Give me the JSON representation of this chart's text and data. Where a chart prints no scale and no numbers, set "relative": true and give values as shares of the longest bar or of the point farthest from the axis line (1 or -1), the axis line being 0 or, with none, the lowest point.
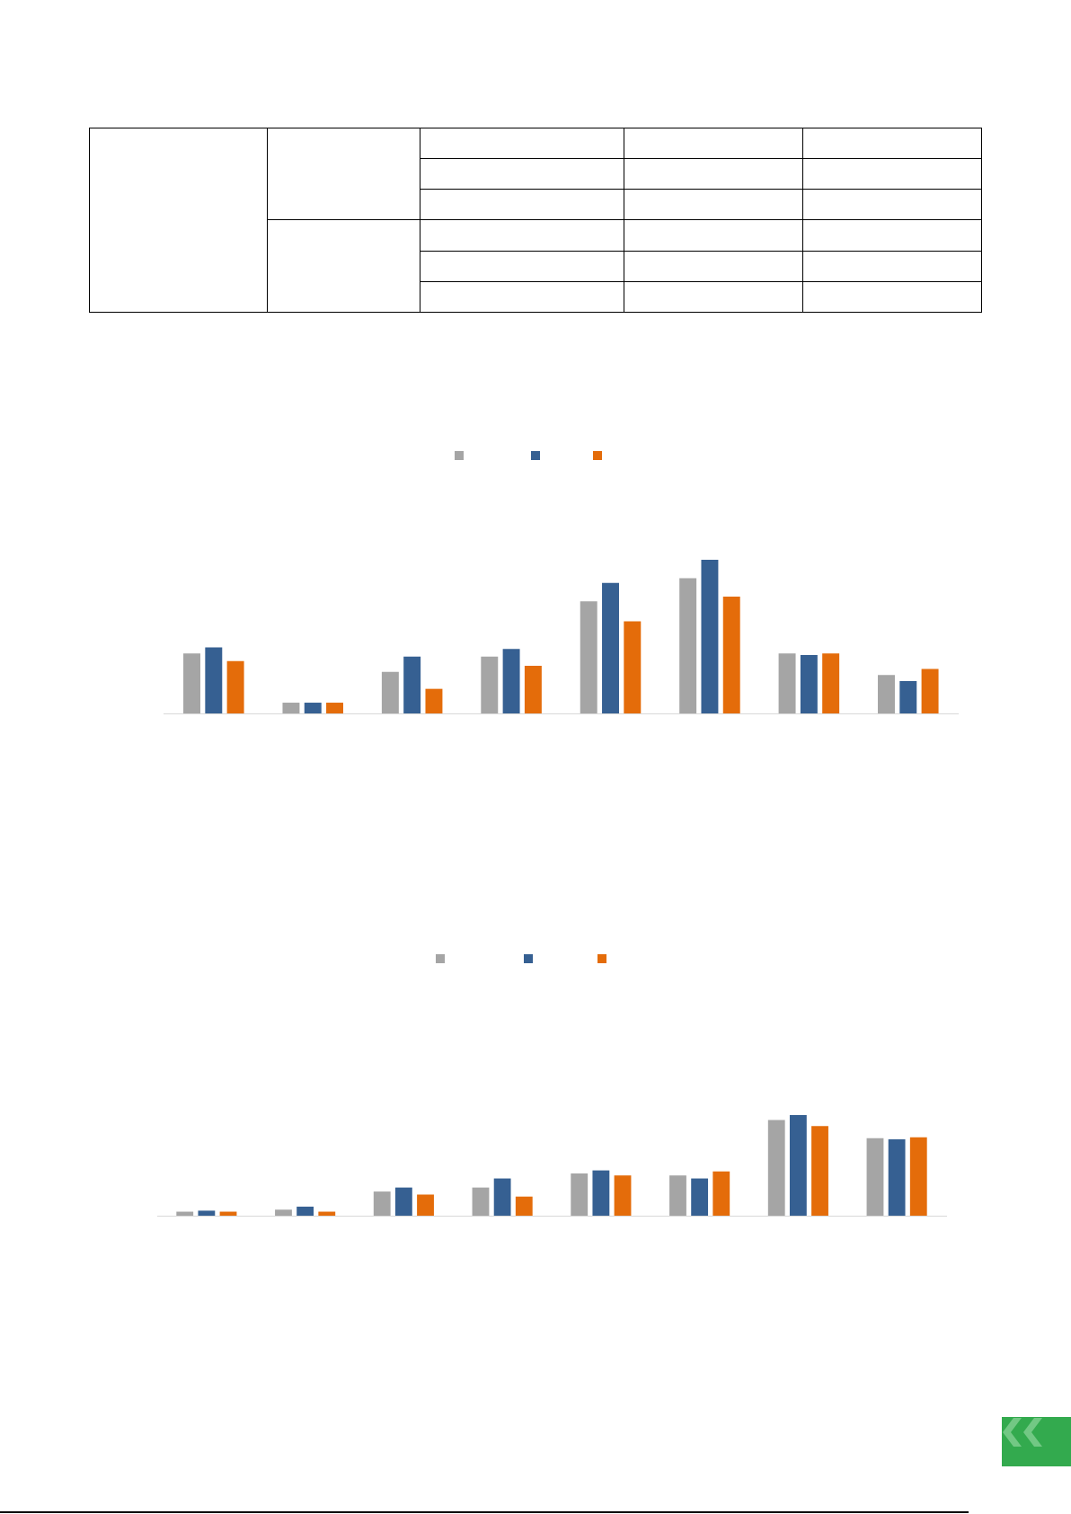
{
  "chart_data": [
    {
      "type": "bar",
      "relative": true,
      "categories": [
        null,
        null,
        null,
        null,
        null,
        null,
        null,
        null
      ],
      "series": [
        {
          "color": "#a5a5a5",
          "values": [
            0.39,
            0.07,
            0.27,
            0.37,
            0.73,
            0.88,
            0.39,
            0.25
          ]
        },
        {
          "color": "#366092",
          "values": [
            0.43,
            0.07,
            0.37,
            0.42,
            0.85,
            1,
            0.38,
            0.21
          ]
        },
        {
          "color": "#e46c0a",
          "values": [
            0.34,
            0.07,
            0.16,
            0.31,
            0.6,
            0.76,
            0.39,
            0.29
          ]
        }
      ]
    },
    {
      "type": "bar",
      "relative": true,
      "categories": [
        null,
        null,
        null,
        null,
        null,
        null,
        null,
        null
      ],
      "series": [
        {
          "color": "#a5a5a5",
          "values": [
            0.04,
            0.06,
            0.24,
            0.28,
            0.42,
            0.4,
            0.95,
            0.77
          ]
        },
        {
          "color": "#366092",
          "values": [
            0.05,
            0.09,
            0.28,
            0.37,
            0.45,
            0.37,
            1,
            0.76
          ]
        },
        {
          "color": "#e46c0a",
          "values": [
            0.04,
            0.04,
            0.21,
            0.19,
            0.4,
            0.44,
            0.89,
            0.78
          ]
        }
      ]
    }
  ]
}
